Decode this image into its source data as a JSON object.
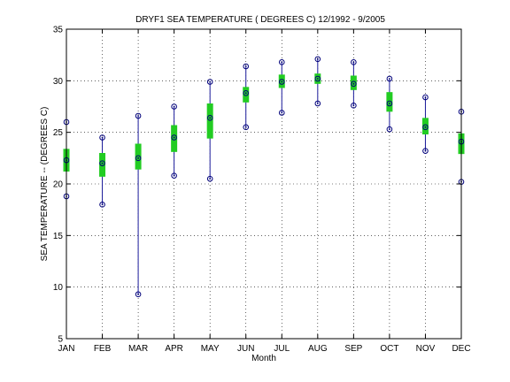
{
  "chart_data": {
    "type": "box",
    "title": "DRYF1  SEA TEMPERATURE ( DEGREES C) 12/1992 - 9/2005",
    "xlabel": "Month",
    "ylabel": "SEA TEMPERATURE -- (DEGREES C)",
    "ylim": [
      5,
      35
    ],
    "yticks": [
      5,
      10,
      15,
      20,
      25,
      30,
      35
    ],
    "grid": true,
    "categories": [
      "JAN",
      "FEB",
      "MAR",
      "APR",
      "MAY",
      "JUN",
      "JUL",
      "AUG",
      "SEP",
      "OCT",
      "NOV",
      "DEC"
    ],
    "min": [
      18.8,
      18.0,
      9.3,
      20.8,
      20.5,
      25.5,
      26.9,
      27.8,
      27.6,
      25.3,
      23.2,
      20.2
    ],
    "q1": [
      21.2,
      20.7,
      21.4,
      23.1,
      24.4,
      27.9,
      29.3,
      29.7,
      29.1,
      27.0,
      24.8,
      22.9
    ],
    "median": [
      22.3,
      22.0,
      22.5,
      24.5,
      26.4,
      28.8,
      29.9,
      30.2,
      29.7,
      27.8,
      25.5,
      24.1
    ],
    "q3": [
      23.4,
      23.0,
      23.9,
      25.7,
      27.8,
      29.4,
      30.6,
      30.7,
      30.5,
      28.9,
      26.4,
      24.9
    ],
    "max": [
      26.0,
      24.5,
      26.6,
      27.5,
      29.9,
      31.4,
      31.8,
      32.1,
      31.8,
      30.2,
      28.4,
      27.0
    ],
    "colors": {
      "box": "#22cc22",
      "whisker": "#1a1a9a",
      "marker": "#00007a",
      "grid": "#000000"
    }
  }
}
